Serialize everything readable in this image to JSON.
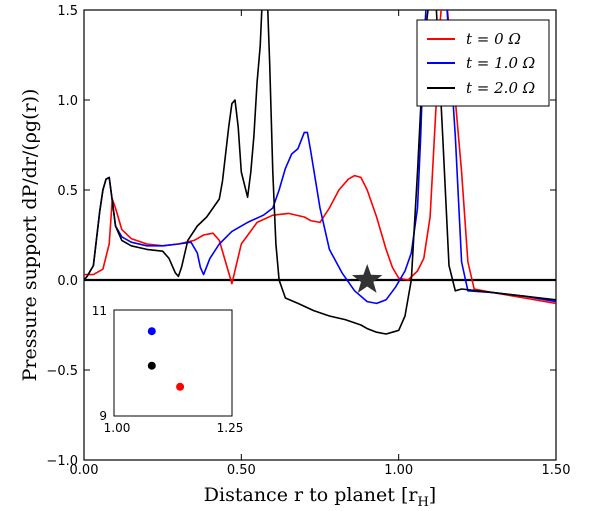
{
  "chart_data": {
    "type": "line",
    "xlabel": "Distance r to planet [r",
    "xlabel_sub": "H",
    "xlabel_end": "]",
    "ylabel": "Pressure support dP/dr/(ρg(r))",
    "xlim": [
      0.0,
      1.5
    ],
    "ylim": [
      -1.0,
      1.5
    ],
    "xticks": [
      0.0,
      0.5,
      1.0,
      1.5
    ],
    "xtick_labels": [
      "0.00",
      "0.50",
      "1.00",
      "1.50"
    ],
    "yticks": [
      -1.0,
      -0.5,
      0.0,
      0.5,
      1.0,
      1.5
    ],
    "ytick_labels": [
      "−1.0",
      "−0.5",
      "0.0",
      "0.5",
      "1.0",
      "1.5"
    ],
    "legend_position": "top-right",
    "grid": false,
    "zero_line": 0.0,
    "series": [
      {
        "name": "t = 0 Ω",
        "color": "#ff0000",
        "x": [
          0.0,
          0.03,
          0.06,
          0.08,
          0.09,
          0.1,
          0.12,
          0.15,
          0.2,
          0.25,
          0.3,
          0.35,
          0.38,
          0.41,
          0.43,
          0.45,
          0.47,
          0.5,
          0.55,
          0.6,
          0.65,
          0.7,
          0.72,
          0.75,
          0.78,
          0.81,
          0.84,
          0.86,
          0.88,
          0.9,
          0.93,
          0.96,
          0.98,
          1.0,
          1.03,
          1.06,
          1.08,
          1.1,
          1.12,
          1.13,
          1.14,
          1.15,
          1.17,
          1.2,
          1.22,
          1.24,
          1.3,
          1.4,
          1.5
        ],
        "y": [
          0.03,
          0.03,
          0.06,
          0.2,
          0.45,
          0.4,
          0.28,
          0.23,
          0.2,
          0.19,
          0.2,
          0.22,
          0.25,
          0.26,
          0.22,
          0.1,
          -0.02,
          0.2,
          0.32,
          0.36,
          0.37,
          0.35,
          0.33,
          0.32,
          0.4,
          0.5,
          0.56,
          0.58,
          0.57,
          0.5,
          0.35,
          0.17,
          0.07,
          0.01,
          0.0,
          0.05,
          0.12,
          0.35,
          1.0,
          1.4,
          1.6,
          1.6,
          1.2,
          0.6,
          0.1,
          -0.05,
          -0.07,
          -0.1,
          -0.13
        ]
      },
      {
        "name": "t = 1.0 Ω",
        "color": "#0000ff",
        "x": [
          0.0,
          0.01,
          0.03,
          0.05,
          0.06,
          0.07,
          0.08,
          0.09,
          0.1,
          0.12,
          0.15,
          0.2,
          0.25,
          0.3,
          0.34,
          0.36,
          0.37,
          0.38,
          0.4,
          0.43,
          0.47,
          0.52,
          0.57,
          0.6,
          0.62,
          0.64,
          0.66,
          0.68,
          0.7,
          0.71,
          0.72,
          0.75,
          0.78,
          0.82,
          0.86,
          0.9,
          0.93,
          0.96,
          0.99,
          1.02,
          1.04,
          1.06,
          1.07,
          1.08,
          1.09,
          1.1,
          1.12,
          1.15,
          1.18,
          1.2,
          1.22,
          1.3,
          1.4,
          1.5
        ],
        "y": [
          0.0,
          0.02,
          0.08,
          0.38,
          0.5,
          0.56,
          0.57,
          0.44,
          0.3,
          0.24,
          0.21,
          0.19,
          0.19,
          0.2,
          0.21,
          0.15,
          0.07,
          0.03,
          0.12,
          0.2,
          0.27,
          0.32,
          0.36,
          0.4,
          0.5,
          0.62,
          0.7,
          0.73,
          0.82,
          0.82,
          0.72,
          0.4,
          0.17,
          0.04,
          -0.06,
          -0.12,
          -0.13,
          -0.11,
          -0.04,
          0.05,
          0.15,
          0.4,
          0.8,
          1.3,
          1.6,
          1.6,
          1.6,
          1.6,
          0.8,
          0.1,
          -0.06,
          -0.07,
          -0.09,
          -0.12
        ]
      },
      {
        "name": "t = 2.0 Ω",
        "color": "#000000",
        "x": [
          0.0,
          0.01,
          0.03,
          0.05,
          0.06,
          0.07,
          0.08,
          0.09,
          0.1,
          0.12,
          0.15,
          0.2,
          0.25,
          0.27,
          0.29,
          0.3,
          0.31,
          0.33,
          0.36,
          0.39,
          0.41,
          0.43,
          0.44,
          0.46,
          0.47,
          0.48,
          0.49,
          0.5,
          0.52,
          0.53,
          0.54,
          0.55,
          0.56,
          0.57,
          0.58,
          0.59,
          0.6,
          0.61,
          0.62,
          0.64,
          0.68,
          0.73,
          0.78,
          0.83,
          0.88,
          0.9,
          0.93,
          0.96,
          0.98,
          1.0,
          1.02,
          1.04,
          1.06,
          1.08,
          1.1,
          1.12,
          1.14,
          1.16,
          1.18,
          1.2,
          1.3,
          1.4,
          1.5
        ],
        "y": [
          0.0,
          0.02,
          0.08,
          0.38,
          0.5,
          0.56,
          0.57,
          0.44,
          0.3,
          0.22,
          0.19,
          0.17,
          0.16,
          0.12,
          0.04,
          0.02,
          0.07,
          0.22,
          0.3,
          0.35,
          0.4,
          0.45,
          0.55,
          0.85,
          0.98,
          1.0,
          0.85,
          0.6,
          0.46,
          0.6,
          0.8,
          1.1,
          1.3,
          1.7,
          1.7,
          1.2,
          0.6,
          0.2,
          0.0,
          -0.1,
          -0.13,
          -0.17,
          -0.2,
          -0.22,
          -0.25,
          -0.27,
          -0.29,
          -0.3,
          -0.29,
          -0.28,
          -0.2,
          0.0,
          0.6,
          1.3,
          1.6,
          1.5,
          0.8,
          0.08,
          -0.06,
          -0.05,
          -0.07,
          -0.09,
          -0.11
        ]
      }
    ],
    "marker": {
      "type": "star",
      "x": 0.9,
      "y": 0.0,
      "color": "#333333"
    },
    "inset": {
      "xlim": [
        1.0,
        1.25
      ],
      "ylim": [
        9,
        11
      ],
      "xtick_labels": [
        "1.00",
        "1.25"
      ],
      "ytick_labels": [
        "11",
        "9"
      ],
      "points": [
        {
          "x": 1.08,
          "y": 10.6,
          "color": "#0000ff"
        },
        {
          "x": 1.08,
          "y": 9.95,
          "color": "#000000"
        },
        {
          "x": 1.14,
          "y": 9.55,
          "color": "#ff0000"
        }
      ]
    }
  }
}
